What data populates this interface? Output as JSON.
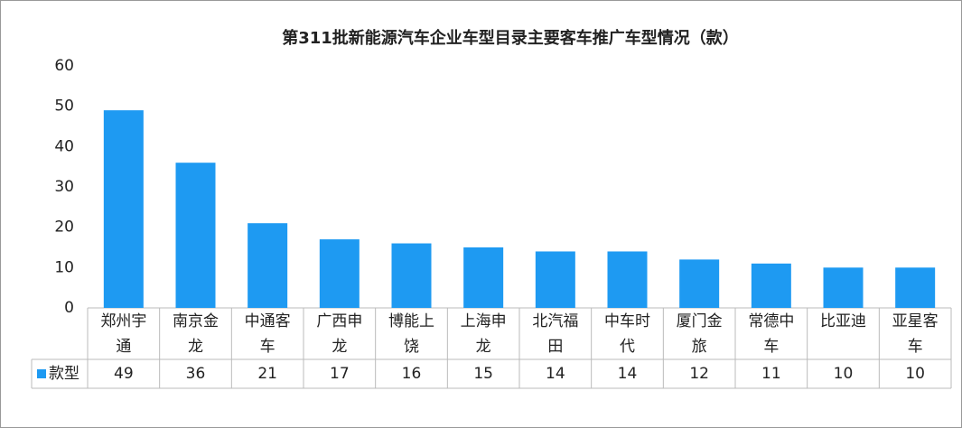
{
  "chart_data": {
    "type": "bar",
    "title": "第311批新能源汽车企业车型目录主要客车推广车型情况（款）",
    "categories": [
      "郑州宇通",
      "南京金龙",
      "中通客车",
      "广西申龙",
      "博能上饶",
      "上海申龙",
      "北汽福田",
      "中车时代",
      "厦门金旅",
      "常德中车",
      "比亚迪",
      "亚星客车"
    ],
    "series": [
      {
        "name": "款型",
        "color": "#1e9af2",
        "values": [
          49,
          36,
          21,
          17,
          16,
          15,
          14,
          14,
          12,
          11,
          10,
          10
        ]
      }
    ],
    "ylim": [
      0,
      60
    ],
    "yticks": [
      0,
      10,
      20,
      30,
      40,
      50,
      60
    ],
    "grid": false,
    "data_table": true
  }
}
